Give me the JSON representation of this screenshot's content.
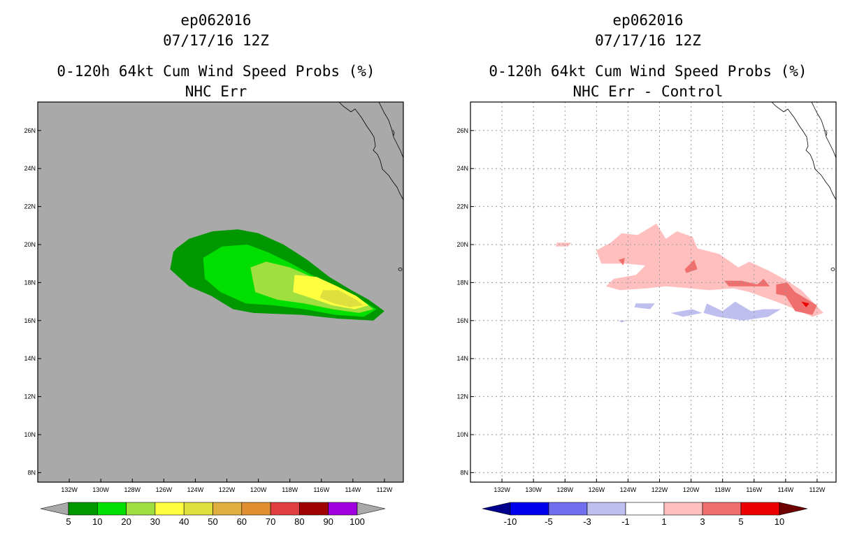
{
  "colors": {
    "ocean_left": "#a9a9a9",
    "ocean_right": "#ffffff",
    "grid": "#9a9a9a",
    "coast": "#000000"
  },
  "chart_data": [
    {
      "type": "heatmap",
      "id": "left",
      "title_lines": [
        "ep062016",
        "07/17/16 12Z"
      ],
      "subtitle_lines": [
        "0-120h 64kt Cum Wind Speed Probs (%)",
        "NHC Err"
      ],
      "xlim": [
        -134.0,
        -110.8
      ],
      "ylim": [
        7.5,
        27.5
      ],
      "x_ticks": [
        -132,
        -130,
        -128,
        -126,
        -124,
        -122,
        -120,
        -118,
        -116,
        -114,
        -112
      ],
      "x_tick_labels": [
        "132W",
        "130W",
        "128W",
        "126W",
        "124W",
        "122W",
        "120W",
        "118W",
        "116W",
        "114W",
        "112W"
      ],
      "y_ticks": [
        8,
        10,
        12,
        14,
        16,
        18,
        20,
        22,
        24,
        26
      ],
      "y_tick_labels": [
        "8N",
        "10N",
        "12N",
        "14N",
        "16N",
        "18N",
        "20N",
        "22N",
        "24N",
        "26N"
      ],
      "grid": false,
      "colorbar": {
        "labels": [
          "5",
          "10",
          "20",
          "30",
          "40",
          "50",
          "60",
          "70",
          "80",
          "90",
          "100"
        ],
        "low_arrow": "#a9a9a9",
        "high_arrow": "#a9a9a9",
        "bins": [
          "#009700",
          "#00df00",
          "#9fdf3f",
          "#ffff3f",
          "#dfdf3f",
          "#dfaf3f",
          "#df8f2f",
          "#df3f3f",
          "#9f0000",
          "#9f00df"
        ]
      },
      "contours": [
        {
          "level": 5,
          "color": "#009700",
          "points": [
            [
              -125.2,
              19.8
            ],
            [
              -124.4,
              20.3
            ],
            [
              -122.9,
              20.7
            ],
            [
              -121.3,
              20.8
            ],
            [
              -120.0,
              20.6
            ],
            [
              -118.4,
              20.0
            ],
            [
              -116.9,
              19.2
            ],
            [
              -115.5,
              18.3
            ],
            [
              -114.1,
              17.6
            ],
            [
              -113.0,
              17.1
            ],
            [
              -112.0,
              16.5
            ],
            [
              -112.7,
              16.0
            ],
            [
              -114.9,
              16.1
            ],
            [
              -117.2,
              16.3
            ],
            [
              -120.3,
              16.4
            ],
            [
              -121.6,
              16.6
            ],
            [
              -123.0,
              17.3
            ],
            [
              -124.4,
              17.8
            ],
            [
              -125.6,
              18.7
            ],
            [
              -125.4,
              19.6
            ]
          ]
        },
        {
          "level": 10,
          "color": "#00df00",
          "points": [
            [
              -123.5,
              19.3
            ],
            [
              -122.3,
              19.9
            ],
            [
              -120.7,
              20.0
            ],
            [
              -119.4,
              19.6
            ],
            [
              -117.9,
              19.0
            ],
            [
              -116.4,
              18.3
            ],
            [
              -115.0,
              17.7
            ],
            [
              -113.7,
              17.2
            ],
            [
              -112.5,
              16.6
            ],
            [
              -113.3,
              16.2
            ],
            [
              -115.1,
              16.3
            ],
            [
              -117.1,
              16.6
            ],
            [
              -119.0,
              16.8
            ],
            [
              -120.8,
              16.9
            ],
            [
              -122.4,
              17.5
            ],
            [
              -123.4,
              18.2
            ]
          ]
        },
        {
          "level": 20,
          "color": "#9fdf3f",
          "points": [
            [
              -120.5,
              18.8
            ],
            [
              -119.5,
              19.1
            ],
            [
              -118.0,
              18.8
            ],
            [
              -116.6,
              18.3
            ],
            [
              -115.2,
              17.8
            ],
            [
              -113.8,
              17.3
            ],
            [
              -112.7,
              16.6
            ],
            [
              -113.6,
              16.4
            ],
            [
              -115.3,
              16.6
            ],
            [
              -117.1,
              16.9
            ],
            [
              -118.8,
              17.1
            ],
            [
              -120.2,
              17.5
            ]
          ]
        },
        {
          "level": 30,
          "color": "#ffff3f",
          "points": [
            [
              -117.7,
              18.4
            ],
            [
              -116.3,
              18.3
            ],
            [
              -115.0,
              17.8
            ],
            [
              -113.8,
              17.3
            ],
            [
              -113.0,
              16.8
            ],
            [
              -113.9,
              16.6
            ],
            [
              -115.3,
              16.8
            ],
            [
              -116.7,
              17.2
            ],
            [
              -117.8,
              17.5
            ]
          ]
        },
        {
          "level": 40,
          "color": "#dfdf3f",
          "points": [
            [
              -115.9,
              17.6
            ],
            [
              -114.9,
              17.6
            ],
            [
              -113.8,
              17.1
            ],
            [
              -113.3,
              16.8
            ],
            [
              -114.2,
              16.7
            ],
            [
              -115.2,
              16.9
            ],
            [
              -116.1,
              17.2
            ]
          ]
        }
      ],
      "island": [
        -111.0,
        18.7
      ]
    },
    {
      "type": "heatmap",
      "id": "right",
      "title_lines": [
        "ep062016",
        "07/17/16 12Z"
      ],
      "subtitle_lines": [
        "0-120h 64kt Cum Wind Speed Probs (%)",
        "NHC Err - Control"
      ],
      "xlim": [
        -134.0,
        -110.8
      ],
      "ylim": [
        7.5,
        27.5
      ],
      "x_ticks": [
        -132,
        -130,
        -128,
        -126,
        -124,
        -122,
        -120,
        -118,
        -116,
        -114,
        -112
      ],
      "x_tick_labels": [
        "132W",
        "130W",
        "128W",
        "126W",
        "124W",
        "122W",
        "120W",
        "118W",
        "116W",
        "114W",
        "112W"
      ],
      "y_ticks": [
        8,
        10,
        12,
        14,
        16,
        18,
        20,
        22,
        24,
        26
      ],
      "y_tick_labels": [
        "8N",
        "10N",
        "12N",
        "14N",
        "16N",
        "18N",
        "20N",
        "22N",
        "24N",
        "26N"
      ],
      "grid": true,
      "colorbar": {
        "labels": [
          "-10",
          "-5",
          "-3",
          "-1",
          "1",
          "3",
          "5",
          "10"
        ],
        "low_arrow": "#00008f",
        "high_arrow": "#6f0000",
        "bins": [
          "#0000ef",
          "#6f6fef",
          "#bfbfef",
          "#ffffff",
          "#ffbfbf",
          "#ef6f6f",
          "#ef0000"
        ]
      },
      "contours": [
        {
          "level": 1,
          "color": "#ffbfbf",
          "points": [
            [
              -125.1,
              20.1
            ],
            [
              -124.4,
              20.6
            ],
            [
              -123.4,
              20.5
            ],
            [
              -122.2,
              21.1
            ],
            [
              -121.6,
              20.3
            ],
            [
              -120.9,
              20.7
            ],
            [
              -119.9,
              20.4
            ],
            [
              -119.6,
              19.8
            ],
            [
              -118.2,
              19.5
            ],
            [
              -117.0,
              18.8
            ],
            [
              -116.3,
              19.1
            ],
            [
              -115.0,
              18.6
            ],
            [
              -113.9,
              18.1
            ],
            [
              -113.0,
              17.6
            ],
            [
              -112.3,
              17.0
            ],
            [
              -111.6,
              16.4
            ],
            [
              -112.3,
              16.2
            ],
            [
              -113.4,
              16.6
            ],
            [
              -114.6,
              17.0
            ],
            [
              -116.3,
              17.5
            ],
            [
              -117.3,
              17.7
            ],
            [
              -118.9,
              17.6
            ],
            [
              -120.1,
              17.7
            ],
            [
              -121.6,
              17.8
            ],
            [
              -122.8,
              17.7
            ],
            [
              -124.5,
              17.6
            ],
            [
              -125.4,
              17.8
            ],
            [
              -124.9,
              18.2
            ],
            [
              -123.5,
              18.4
            ],
            [
              -122.9,
              18.9
            ],
            [
              -124.2,
              19.0
            ],
            [
              -125.7,
              19.0
            ],
            [
              -126.0,
              19.7
            ]
          ]
        },
        {
          "level": 1,
          "color": "#ffbfbf",
          "points": [
            [
              -128.5,
              20.1
            ],
            [
              -127.6,
              20.1
            ],
            [
              -127.8,
              19.9
            ],
            [
              -128.6,
              19.9
            ]
          ]
        },
        {
          "level": 3,
          "color": "#ef6f6f",
          "points": [
            [
              -120.4,
              18.7
            ],
            [
              -119.8,
              19.2
            ],
            [
              -119.6,
              18.7
            ],
            [
              -120.3,
              18.5
            ]
          ]
        },
        {
          "level": 3,
          "color": "#ef6f6f",
          "points": [
            [
              -124.6,
              19.2
            ],
            [
              -124.2,
              19.3
            ],
            [
              -124.3,
              18.9
            ]
          ]
        },
        {
          "level": 3,
          "color": "#ef6f6f",
          "points": [
            [
              -117.9,
              18.1
            ],
            [
              -116.8,
              18.1
            ],
            [
              -115.8,
              17.9
            ],
            [
              -115.4,
              18.2
            ],
            [
              -115.0,
              17.8
            ],
            [
              -116.7,
              17.8
            ],
            [
              -117.6,
              17.8
            ]
          ]
        },
        {
          "level": 3,
          "color": "#ef6f6f",
          "points": [
            [
              -114.6,
              17.9
            ],
            [
              -113.9,
              18.0
            ],
            [
              -113.4,
              17.5
            ],
            [
              -112.6,
              17.1
            ],
            [
              -112.0,
              16.8
            ],
            [
              -112.3,
              16.3
            ],
            [
              -113.4,
              16.5
            ],
            [
              -114.0,
              17.3
            ],
            [
              -114.6,
              17.4
            ]
          ]
        },
        {
          "level": 5,
          "color": "#ef0000",
          "points": [
            [
              -113.0,
              17.0
            ],
            [
              -112.5,
              16.9
            ],
            [
              -112.7,
              16.7
            ]
          ]
        },
        {
          "level": -1,
          "color": "#bfbfef",
          "points": [
            [
              -119.0,
              16.9
            ],
            [
              -118.0,
              16.5
            ],
            [
              -117.2,
              17.0
            ],
            [
              -116.2,
              16.5
            ],
            [
              -115.4,
              16.6
            ],
            [
              -114.3,
              16.6
            ],
            [
              -115.1,
              16.2
            ],
            [
              -116.7,
              16.0
            ],
            [
              -118.3,
              16.2
            ],
            [
              -119.2,
              16.4
            ]
          ]
        },
        {
          "level": -1,
          "color": "#bfbfef",
          "points": [
            [
              -121.3,
              16.4
            ],
            [
              -119.9,
              16.6
            ],
            [
              -119.3,
              16.4
            ],
            [
              -120.5,
              16.2
            ]
          ]
        },
        {
          "level": -1,
          "color": "#bfbfef",
          "points": [
            [
              -123.5,
              16.9
            ],
            [
              -122.3,
              16.9
            ],
            [
              -122.6,
              16.6
            ],
            [
              -123.6,
              16.7
            ]
          ]
        },
        {
          "level": -1,
          "color": "#bfbfef",
          "points": [
            [
              -124.6,
              16.0
            ],
            [
              -124.1,
              16.0
            ],
            [
              -124.4,
              15.9
            ]
          ]
        }
      ],
      "island": [
        -111.0,
        18.7
      ]
    }
  ]
}
